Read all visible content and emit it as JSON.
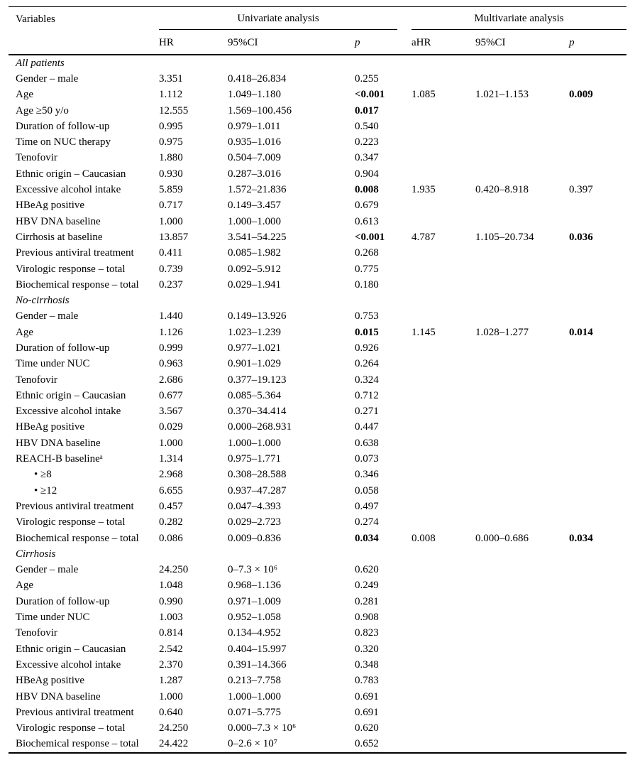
{
  "header": {
    "variables_label": "Variables",
    "univariate_label": "Univariate analysis",
    "multivariate_label": "Multivariate analysis",
    "columns": {
      "hr": "HR",
      "ci": "95%CI",
      "p": "p",
      "ahr": "aHR",
      "aci": "95%CI",
      "ap": "p"
    }
  },
  "rows": [
    {
      "section": "All patients"
    },
    {
      "label": "Gender – male",
      "hr": "3.351",
      "ci": "0.418–26.834",
      "p": "0.255"
    },
    {
      "label": "Age",
      "hr": "1.112",
      "ci": "1.049–1.180",
      "p": "<0.001",
      "p_bold": true,
      "ahr": "1.085",
      "aci": "1.021–1.153",
      "ap": "0.009",
      "ap_bold": true
    },
    {
      "label": "Age ≥50 y/o",
      "hr": "12.555",
      "ci": "1.569–100.456",
      "p": "0.017",
      "p_bold": true
    },
    {
      "label": "Duration of follow-up",
      "hr": "0.995",
      "ci": "0.979–1.011",
      "p": "0.540"
    },
    {
      "label": "Time on NUC therapy",
      "hr": "0.975",
      "ci": "0.935–1.016",
      "p": "0.223"
    },
    {
      "label": "Tenofovir",
      "hr": "1.880",
      "ci": "0.504–7.009",
      "p": "0.347"
    },
    {
      "label": "Ethnic origin – Caucasian",
      "hr": "0.930",
      "ci": "0.287–3.016",
      "p": "0.904"
    },
    {
      "label": "Excessive alcohol intake",
      "hr": "5.859",
      "ci": "1.572–21.836",
      "p": "0.008",
      "p_bold": true,
      "ahr": "1.935",
      "aci": "0.420–8.918",
      "ap": "0.397"
    },
    {
      "label": "HBeAg positive",
      "hr": "0.717",
      "ci": "0.149–3.457",
      "p": "0.679"
    },
    {
      "label": "HBV DNA baseline",
      "hr": "1.000",
      "ci": "1.000–1.000",
      "p": "0.613"
    },
    {
      "label": "Cirrhosis at baseline",
      "hr": "13.857",
      "ci": "3.541–54.225",
      "p": "<0.001",
      "p_bold": true,
      "ahr": "4.787",
      "aci": "1.105–20.734",
      "ap": "0.036",
      "ap_bold": true
    },
    {
      "label": "Previous antiviral treatment",
      "hr": "0.411",
      "ci": "0.085–1.982",
      "p": "0.268"
    },
    {
      "label": "Virologic response – total",
      "hr": "0.739",
      "ci": "0.092–5.912",
      "p": "0.775"
    },
    {
      "label": "Biochemical response – total",
      "hr": "0.237",
      "ci": "0.029–1.941",
      "p": "0.180"
    },
    {
      "section": "No-cirrhosis"
    },
    {
      "label": "Gender – male",
      "hr": "1.440",
      "ci": "0.149–13.926",
      "p": "0.753"
    },
    {
      "label": "Age",
      "hr": "1.126",
      "ci": "1.023–1.239",
      "p": "0.015",
      "p_bold": true,
      "ahr": "1.145",
      "aci": "1.028–1.277",
      "ap": "0.014",
      "ap_bold": true
    },
    {
      "label": "Duration of follow-up",
      "hr": "0.999",
      "ci": "0.977–1.021",
      "p": "0.926"
    },
    {
      "label": "Time under NUC",
      "hr": "0.963",
      "ci": "0.901–1.029",
      "p": "0.264"
    },
    {
      "label": "Tenofovir",
      "hr": "2.686",
      "ci": "0.377–19.123",
      "p": "0.324"
    },
    {
      "label": "Ethnic origin – Caucasian",
      "hr": "0.677",
      "ci": "0.085–5.364",
      "p": "0.712"
    },
    {
      "label": "Excessive alcohol intake",
      "hr": "3.567",
      "ci": "0.370–34.414",
      "p": "0.271"
    },
    {
      "label": "HBeAg positive",
      "hr": "0.029",
      "ci": "0.000–268.931",
      "p": "0.447"
    },
    {
      "label": "HBV DNA baseline",
      "hr": "1.000",
      "ci": "1.000–1.000",
      "p": "0.638"
    },
    {
      "label": "REACH-B baselineᵃ",
      "hr": "1.314",
      "ci": "0.975–1.771",
      "p": "0.073"
    },
    {
      "label": "• ≥8",
      "indent": true,
      "hr": "2.968",
      "ci": "0.308–28.588",
      "p": "0.346"
    },
    {
      "label": "• ≥12",
      "indent": true,
      "hr": "6.655",
      "ci": "0.937–47.287",
      "p": "0.058"
    },
    {
      "label": "Previous antiviral treatment",
      "hr": "0.457",
      "ci": "0.047–4.393",
      "p": "0.497"
    },
    {
      "label": "Virologic response – total",
      "hr": "0.282",
      "ci": "0.029–2.723",
      "p": "0.274"
    },
    {
      "label": "Biochemical response – total",
      "hr": "0.086",
      "ci": "0.009–0.836",
      "p": "0.034",
      "p_bold": true,
      "ahr": "0.008",
      "aci": "0.000–0.686",
      "ap": "0.034",
      "ap_bold": true
    },
    {
      "section": "Cirrhosis"
    },
    {
      "label": "Gender – male",
      "hr": "24.250",
      "ci": "0–7.3 × 10⁶",
      "p": "0.620"
    },
    {
      "label": "Age",
      "hr": "1.048",
      "ci": "0.968–1.136",
      "p": "0.249"
    },
    {
      "label": "Duration of follow-up",
      "hr": "0.990",
      "ci": "0.971–1.009",
      "p": "0.281"
    },
    {
      "label": "Time under NUC",
      "hr": "1.003",
      "ci": "0.952–1.058",
      "p": "0.908"
    },
    {
      "label": "Tenofovir",
      "hr": "0.814",
      "ci": "0.134–4.952",
      "p": "0.823"
    },
    {
      "label": "Ethnic origin – Caucasian",
      "hr": "2.542",
      "ci": "0.404–15.997",
      "p": "0.320"
    },
    {
      "label": "Excessive alcohol intake",
      "hr": "2.370",
      "ci": "0.391–14.366",
      "p": "0.348"
    },
    {
      "label": "HBeAg positive",
      "hr": "1.287",
      "ci": "0.213–7.758",
      "p": "0.783"
    },
    {
      "label": "HBV DNA baseline",
      "hr": "1.000",
      "ci": "1.000–1.000",
      "p": "0.691"
    },
    {
      "label": "Previous antiviral treatment",
      "hr": "0.640",
      "ci": "0.071–5.775",
      "p": "0.691"
    },
    {
      "label": "Virologic response – total",
      "hr": "24.250",
      "ci": "0.000–7.3 × 10⁶",
      "p": "0.620"
    },
    {
      "label": "Biochemical response – total",
      "hr": "24.422",
      "ci": "0–2.6 × 10⁷",
      "p": "0.652"
    }
  ]
}
